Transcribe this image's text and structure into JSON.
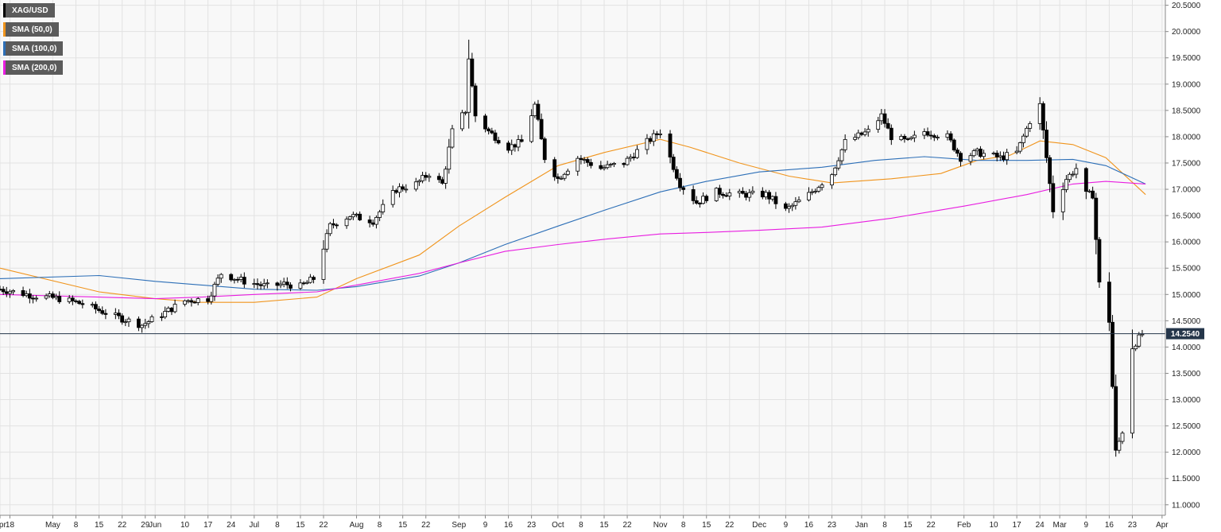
{
  "legend": [
    {
      "label": "XAG/USD",
      "color": "#000000"
    },
    {
      "label": "SMA (50,0)",
      "color": "#f0941c"
    },
    {
      "label": "SMA (100,0)",
      "color": "#2d6fb7"
    },
    {
      "label": "SMA (200,0)",
      "color": "#e81de0"
    }
  ],
  "current_price": {
    "label": "14.2540",
    "value": 14.254
  },
  "chart_data": {
    "type": "candlestick",
    "symbol": "XAG/USD",
    "ylim": [
      10.8,
      20.6
    ],
    "y_ticks": [
      11.0,
      11.5,
      12.0,
      12.5,
      13.0,
      13.5,
      14.0,
      14.5,
      15.0,
      15.5,
      16.0,
      16.5,
      17.0,
      17.5,
      18.0,
      18.5,
      19.0,
      19.5,
      20.0,
      20.5
    ],
    "y_tick_labels": [
      "11.0000",
      "11.5000",
      "12.0000",
      "12.5000",
      "13.0000",
      "13.5000",
      "14.0000",
      "14.5000",
      "15.0000",
      "15.5000",
      "16.0000",
      "16.5000",
      "17.0000",
      "17.5000",
      "18.0000",
      "18.5000",
      "19.0000",
      "19.5000",
      "20.0000",
      "20.5000"
    ],
    "x_start": "2019-04-15",
    "x_end": "2020-04-02",
    "x_ticks": [
      {
        "label": "Apr",
        "date": "2019-04-15"
      },
      {
        "label": "18",
        "date": "2019-04-18"
      },
      {
        "label": "May",
        "date": "2019-05-01"
      },
      {
        "label": "8",
        "date": "2019-05-08"
      },
      {
        "label": "15",
        "date": "2019-05-15"
      },
      {
        "label": "22",
        "date": "2019-05-22"
      },
      {
        "label": "29",
        "date": "2019-05-29"
      },
      {
        "label": "Jun",
        "date": "2019-06-01"
      },
      {
        "label": "10",
        "date": "2019-06-10"
      },
      {
        "label": "17",
        "date": "2019-06-17"
      },
      {
        "label": "24",
        "date": "2019-06-24"
      },
      {
        "label": "Jul",
        "date": "2019-07-01"
      },
      {
        "label": "8",
        "date": "2019-07-08"
      },
      {
        "label": "15",
        "date": "2019-07-15"
      },
      {
        "label": "22",
        "date": "2019-07-22"
      },
      {
        "label": "Aug",
        "date": "2019-08-01"
      },
      {
        "label": "8",
        "date": "2019-08-08"
      },
      {
        "label": "15",
        "date": "2019-08-15"
      },
      {
        "label": "22",
        "date": "2019-08-22"
      },
      {
        "label": "Sep",
        "date": "2019-09-01"
      },
      {
        "label": "9",
        "date": "2019-09-09"
      },
      {
        "label": "16",
        "date": "2019-09-16"
      },
      {
        "label": "23",
        "date": "2019-09-23"
      },
      {
        "label": "Oct",
        "date": "2019-10-01"
      },
      {
        "label": "8",
        "date": "2019-10-08"
      },
      {
        "label": "15",
        "date": "2019-10-15"
      },
      {
        "label": "22",
        "date": "2019-10-22"
      },
      {
        "label": "Nov",
        "date": "2019-11-01"
      },
      {
        "label": "8",
        "date": "2019-11-08"
      },
      {
        "label": "15",
        "date": "2019-11-15"
      },
      {
        "label": "22",
        "date": "2019-11-22"
      },
      {
        "label": "Dec",
        "date": "2019-12-01"
      },
      {
        "label": "9",
        "date": "2019-12-09"
      },
      {
        "label": "16",
        "date": "2019-12-16"
      },
      {
        "label": "23",
        "date": "2019-12-23"
      },
      {
        "label": "Jan",
        "date": "2020-01-01"
      },
      {
        "label": "8",
        "date": "2020-01-08"
      },
      {
        "label": "15",
        "date": "2020-01-15"
      },
      {
        "label": "22",
        "date": "2020-01-22"
      },
      {
        "label": "Feb",
        "date": "2020-02-01"
      },
      {
        "label": "10",
        "date": "2020-02-10"
      },
      {
        "label": "17",
        "date": "2020-02-17"
      },
      {
        "label": "24",
        "date": "2020-02-24"
      },
      {
        "label": "Mar",
        "date": "2020-03-01"
      },
      {
        "label": "9",
        "date": "2020-03-09"
      },
      {
        "label": "16",
        "date": "2020-03-16"
      },
      {
        "label": "23",
        "date": "2020-03-23"
      },
      {
        "label": "Apr",
        "date": "2020-04-01"
      }
    ],
    "price_anchors": [
      [
        "2019-04-15",
        15.1
      ],
      [
        "2019-04-25",
        14.98
      ],
      [
        "2019-05-03",
        14.92
      ],
      [
        "2019-05-10",
        14.82
      ],
      [
        "2019-05-20",
        14.58
      ],
      [
        "2019-05-28",
        14.42
      ],
      [
        "2019-06-03",
        14.62
      ],
      [
        "2019-06-10",
        14.88
      ],
      [
        "2019-06-17",
        14.92
      ],
      [
        "2019-06-21",
        15.4
      ],
      [
        "2019-06-28",
        15.25
      ],
      [
        "2019-07-05",
        15.15
      ],
      [
        "2019-07-10",
        15.2
      ],
      [
        "2019-07-15",
        15.15
      ],
      [
        "2019-07-19",
        15.3
      ],
      [
        "2019-07-24",
        16.3
      ],
      [
        "2019-07-30",
        16.5
      ],
      [
        "2019-08-06",
        16.4
      ],
      [
        "2019-08-13",
        17.0
      ],
      [
        "2019-08-19",
        17.1
      ],
      [
        "2019-08-23",
        17.3
      ],
      [
        "2019-08-27",
        17.1
      ],
      [
        "2019-08-30",
        18.1
      ],
      [
        "2019-09-03",
        18.5
      ],
      [
        "2019-09-04",
        19.5
      ],
      [
        "2019-09-06",
        18.4
      ],
      [
        "2019-09-10",
        18.1
      ],
      [
        "2019-09-16",
        17.8
      ],
      [
        "2019-09-20",
        17.9
      ],
      [
        "2019-09-24",
        18.6
      ],
      [
        "2019-09-27",
        17.6
      ],
      [
        "2019-10-01",
        17.2
      ],
      [
        "2019-10-07",
        17.6
      ],
      [
        "2019-10-14",
        17.4
      ],
      [
        "2019-10-21",
        17.5
      ],
      [
        "2019-10-28",
        17.9
      ],
      [
        "2019-11-01",
        18.1
      ],
      [
        "2019-11-07",
        17.1
      ],
      [
        "2019-11-12",
        16.75
      ],
      [
        "2019-11-18",
        16.95
      ],
      [
        "2019-11-25",
        16.9
      ],
      [
        "2019-12-03",
        16.9
      ],
      [
        "2019-12-09",
        16.6
      ],
      [
        "2019-12-16",
        16.9
      ],
      [
        "2019-12-23",
        17.3
      ],
      [
        "2019-12-27",
        17.9
      ],
      [
        "2020-01-03",
        18.1
      ],
      [
        "2020-01-07",
        18.4
      ],
      [
        "2020-01-10",
        18.0
      ],
      [
        "2020-01-15",
        17.9
      ],
      [
        "2020-01-20",
        18.1
      ],
      [
        "2020-01-27",
        18.0
      ],
      [
        "2020-01-31",
        17.6
      ],
      [
        "2020-02-05",
        17.7
      ],
      [
        "2020-02-12",
        17.6
      ],
      [
        "2020-02-17",
        17.7
      ],
      [
        "2020-02-21",
        18.3
      ],
      [
        "2020-02-24",
        18.6
      ],
      [
        "2020-02-28",
        16.6
      ],
      [
        "2020-03-03",
        17.2
      ],
      [
        "2020-03-06",
        17.4
      ],
      [
        "2020-03-09",
        16.9
      ],
      [
        "2020-03-11",
        16.9
      ],
      [
        "2020-03-13",
        15.2
      ],
      [
        "2020-03-16",
        14.5
      ],
      [
        "2020-03-18",
        12.0
      ],
      [
        "2020-03-20",
        12.4
      ],
      [
        "2020-03-23",
        14.0
      ],
      [
        "2020-03-26",
        14.25
      ]
    ],
    "series": [
      {
        "name": "SMA (50,0)",
        "color": "#f0941c",
        "points": [
          [
            "2019-04-15",
            15.5
          ],
          [
            "2019-05-15",
            15.05
          ],
          [
            "2019-06-01",
            14.92
          ],
          [
            "2019-06-15",
            14.85
          ],
          [
            "2019-07-01",
            14.85
          ],
          [
            "2019-07-20",
            14.95
          ],
          [
            "2019-08-01",
            15.3
          ],
          [
            "2019-08-20",
            15.75
          ],
          [
            "2019-09-01",
            16.3
          ],
          [
            "2019-09-15",
            16.85
          ],
          [
            "2019-10-01",
            17.45
          ],
          [
            "2019-10-15",
            17.7
          ],
          [
            "2019-11-01",
            17.95
          ],
          [
            "2019-11-10",
            17.8
          ],
          [
            "2019-11-25",
            17.5
          ],
          [
            "2019-12-10",
            17.25
          ],
          [
            "2019-12-23",
            17.12
          ],
          [
            "2020-01-10",
            17.2
          ],
          [
            "2020-01-25",
            17.3
          ],
          [
            "2020-02-05",
            17.55
          ],
          [
            "2020-02-15",
            17.65
          ],
          [
            "2020-02-24",
            17.92
          ],
          [
            "2020-03-05",
            17.85
          ],
          [
            "2020-03-15",
            17.6
          ],
          [
            "2020-03-27",
            16.9
          ]
        ]
      },
      {
        "name": "SMA (100,0)",
        "color": "#2d6fb7",
        "points": [
          [
            "2019-04-15",
            15.3
          ],
          [
            "2019-05-15",
            15.36
          ],
          [
            "2019-06-01",
            15.25
          ],
          [
            "2019-06-15",
            15.18
          ],
          [
            "2019-07-01",
            15.1
          ],
          [
            "2019-07-20",
            15.08
          ],
          [
            "2019-08-01",
            15.15
          ],
          [
            "2019-08-20",
            15.35
          ],
          [
            "2019-09-01",
            15.6
          ],
          [
            "2019-09-15",
            15.95
          ],
          [
            "2019-10-01",
            16.3
          ],
          [
            "2019-10-15",
            16.6
          ],
          [
            "2019-11-01",
            16.95
          ],
          [
            "2019-11-15",
            17.15
          ],
          [
            "2019-12-01",
            17.33
          ],
          [
            "2019-12-20",
            17.42
          ],
          [
            "2020-01-05",
            17.55
          ],
          [
            "2020-01-20",
            17.62
          ],
          [
            "2020-02-05",
            17.55
          ],
          [
            "2020-02-20",
            17.55
          ],
          [
            "2020-03-05",
            17.57
          ],
          [
            "2020-03-15",
            17.45
          ],
          [
            "2020-03-27",
            17.1
          ]
        ]
      },
      {
        "name": "SMA (200,0)",
        "color": "#e81de0",
        "points": [
          [
            "2019-04-15",
            15.0
          ],
          [
            "2019-05-15",
            14.95
          ],
          [
            "2019-06-01",
            14.92
          ],
          [
            "2019-06-15",
            14.95
          ],
          [
            "2019-07-01",
            15.0
          ],
          [
            "2019-07-20",
            15.05
          ],
          [
            "2019-08-01",
            15.18
          ],
          [
            "2019-08-20",
            15.4
          ],
          [
            "2019-09-01",
            15.6
          ],
          [
            "2019-09-15",
            15.82
          ],
          [
            "2019-10-01",
            15.95
          ],
          [
            "2019-10-15",
            16.05
          ],
          [
            "2019-11-01",
            16.15
          ],
          [
            "2019-11-15",
            16.18
          ],
          [
            "2019-12-01",
            16.22
          ],
          [
            "2019-12-20",
            16.28
          ],
          [
            "2020-01-10",
            16.45
          ],
          [
            "2020-02-01",
            16.68
          ],
          [
            "2020-02-20",
            16.9
          ],
          [
            "2020-03-05",
            17.1
          ],
          [
            "2020-03-15",
            17.15
          ],
          [
            "2020-03-27",
            17.1
          ]
        ]
      }
    ],
    "grid": true,
    "legend_position": "top-left"
  }
}
